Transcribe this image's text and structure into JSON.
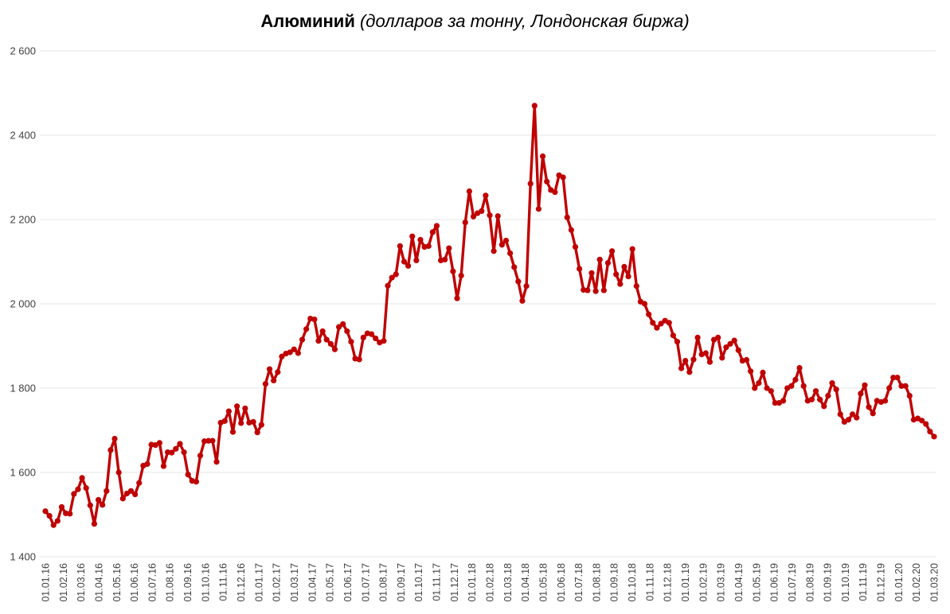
{
  "chart_data": {
    "type": "line",
    "title_bold": "Алюминий",
    "title_italic": "(долларов за тонну, Лондонская биржа)",
    "xlabel": "",
    "ylabel": "",
    "ylim": [
      1400,
      2600
    ],
    "yticks": [
      1400,
      1600,
      1800,
      2000,
      2200,
      2400,
      2600
    ],
    "ytick_labels": [
      "1 400",
      "1 600",
      "1 800",
      "2 000",
      "2 200",
      "2 400",
      "2 600"
    ],
    "grid": "horizontal",
    "legend": "none",
    "line_color": "#c00000",
    "x_tick_labels": [
      "01.01.16",
      "01.02.16",
      "01.03.16",
      "01.04.16",
      "01.05.16",
      "01.06.16",
      "01.07.16",
      "01.08.16",
      "01.09.16",
      "01.10.16",
      "01.11.16",
      "01.12.16",
      "01.01.17",
      "01.02.17",
      "01.03.17",
      "01.04.17",
      "01.05.17",
      "01.06.17",
      "01.07.17",
      "01.08.17",
      "01.09.17",
      "01.10.17",
      "01.11.17",
      "01.12.17",
      "01.01.18",
      "01.02.18",
      "01.03.18",
      "01.04.18",
      "01.05.18",
      "01.06.18",
      "01.07.18",
      "01.08.18",
      "01.09.18",
      "01.10.18",
      "01.11.18",
      "01.12.18",
      "01.01.19",
      "01.02.19",
      "01.03.19",
      "01.04.19",
      "01.05.19",
      "01.06.19",
      "01.07.19",
      "01.08.19",
      "01.09.19",
      "01.10.19",
      "01.11.19",
      "01.12.19",
      "01.01.20",
      "01.02.20",
      "01.03.20"
    ],
    "values": [
      1508,
      1497,
      1475,
      1485,
      1518,
      1503,
      1502,
      1549,
      1560,
      1587,
      1563,
      1522,
      1478,
      1535,
      1523,
      1556,
      1653,
      1680,
      1600,
      1538,
      1550,
      1556,
      1548,
      1575,
      1616,
      1620,
      1666,
      1665,
      1670,
      1615,
      1648,
      1647,
      1656,
      1668,
      1648,
      1595,
      1580,
      1578,
      1640,
      1674,
      1675,
      1675,
      1625,
      1718,
      1722,
      1745,
      1696,
      1757,
      1717,
      1752,
      1718,
      1720,
      1695,
      1713,
      1810,
      1845,
      1818,
      1838,
      1875,
      1882,
      1885,
      1892,
      1883,
      1915,
      1940,
      1965,
      1963,
      1912,
      1935,
      1915,
      1905,
      1892,
      1945,
      1952,
      1935,
      1910,
      1870,
      1868,
      1920,
      1930,
      1928,
      1918,
      1908,
      1912,
      2043,
      2062,
      2070,
      2137,
      2100,
      2090,
      2160,
      2103,
      2152,
      2135,
      2137,
      2170,
      2185,
      2103,
      2105,
      2132,
      2077,
      2013,
      2067,
      2193,
      2267,
      2207,
      2215,
      2220,
      2257,
      2210,
      2125,
      2208,
      2140,
      2150,
      2120,
      2087,
      2053,
      2007,
      2042,
      2285,
      2470,
      2225,
      2350,
      2290,
      2270,
      2265,
      2305,
      2300,
      2205,
      2175,
      2135,
      2083,
      2033,
      2032,
      2073,
      2030,
      2105,
      2032,
      2097,
      2125,
      2070,
      2047,
      2088,
      2065,
      2130,
      2042,
      2005,
      2000,
      1975,
      1955,
      1943,
      1953,
      1960,
      1955,
      1925,
      1910,
      1847,
      1865,
      1838,
      1868,
      1920,
      1880,
      1883,
      1862,
      1915,
      1920,
      1872,
      1897,
      1905,
      1913,
      1890,
      1865,
      1867,
      1840,
      1800,
      1812,
      1837,
      1800,
      1793,
      1765,
      1765,
      1770,
      1800,
      1805,
      1820,
      1848,
      1805,
      1770,
      1773,
      1793,
      1773,
      1757,
      1782,
      1812,
      1797,
      1738,
      1720,
      1725,
      1738,
      1730,
      1787,
      1807,
      1755,
      1740,
      1770,
      1767,
      1770,
      1800,
      1825,
      1825,
      1805,
      1805,
      1782,
      1725,
      1728,
      1723,
      1715,
      1697,
      1685
    ]
  }
}
